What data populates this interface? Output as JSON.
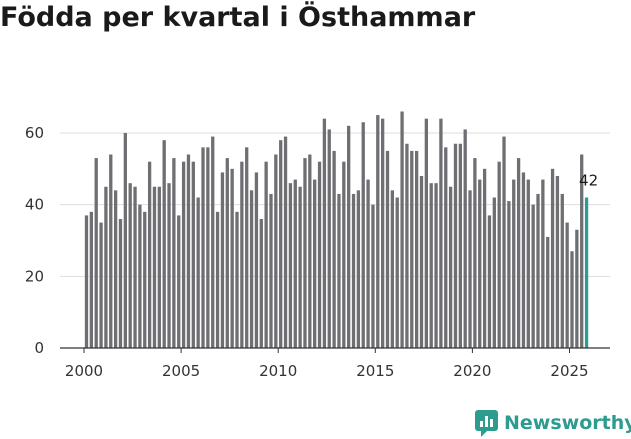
{
  "title": "Födda per kvartal i Östhammar",
  "brand": "Newsworthy",
  "colors": {
    "bar": "#6f6e73",
    "highlight": "#2d9c8f",
    "grid": "#dddddd"
  },
  "chart_data": {
    "type": "bar",
    "title": "Födda per kvartal i Östhammar",
    "xlabel": "",
    "ylabel": "",
    "ylim": [
      0,
      70
    ],
    "yticks": [
      "0",
      "20",
      "40",
      "60"
    ],
    "xticks": [
      "2000",
      "2005",
      "2010",
      "2015",
      "2020",
      "2025"
    ],
    "first_year": 2000,
    "values": [
      37,
      38,
      53,
      35,
      45,
      54,
      44,
      36,
      60,
      46,
      45,
      40,
      38,
      52,
      45,
      45,
      58,
      46,
      53,
      37,
      52,
      54,
      52,
      42,
      56,
      56,
      59,
      38,
      49,
      53,
      50,
      38,
      52,
      56,
      44,
      49,
      36,
      52,
      43,
      54,
      58,
      59,
      46,
      47,
      45,
      53,
      54,
      47,
      52,
      64,
      61,
      55,
      43,
      52,
      62,
      43,
      44,
      63,
      47,
      40,
      65,
      64,
      55,
      44,
      42,
      66,
      57,
      55,
      55,
      48,
      64,
      46,
      46,
      64,
      56,
      45,
      57,
      57,
      61,
      44,
      53,
      47,
      50,
      37,
      42,
      52,
      59,
      41,
      47,
      53,
      49,
      47,
      40,
      43,
      47,
      31,
      50,
      48,
      43,
      35,
      27,
      33,
      54,
      42
    ],
    "highlight_index": 103,
    "highlight_label": "42"
  }
}
